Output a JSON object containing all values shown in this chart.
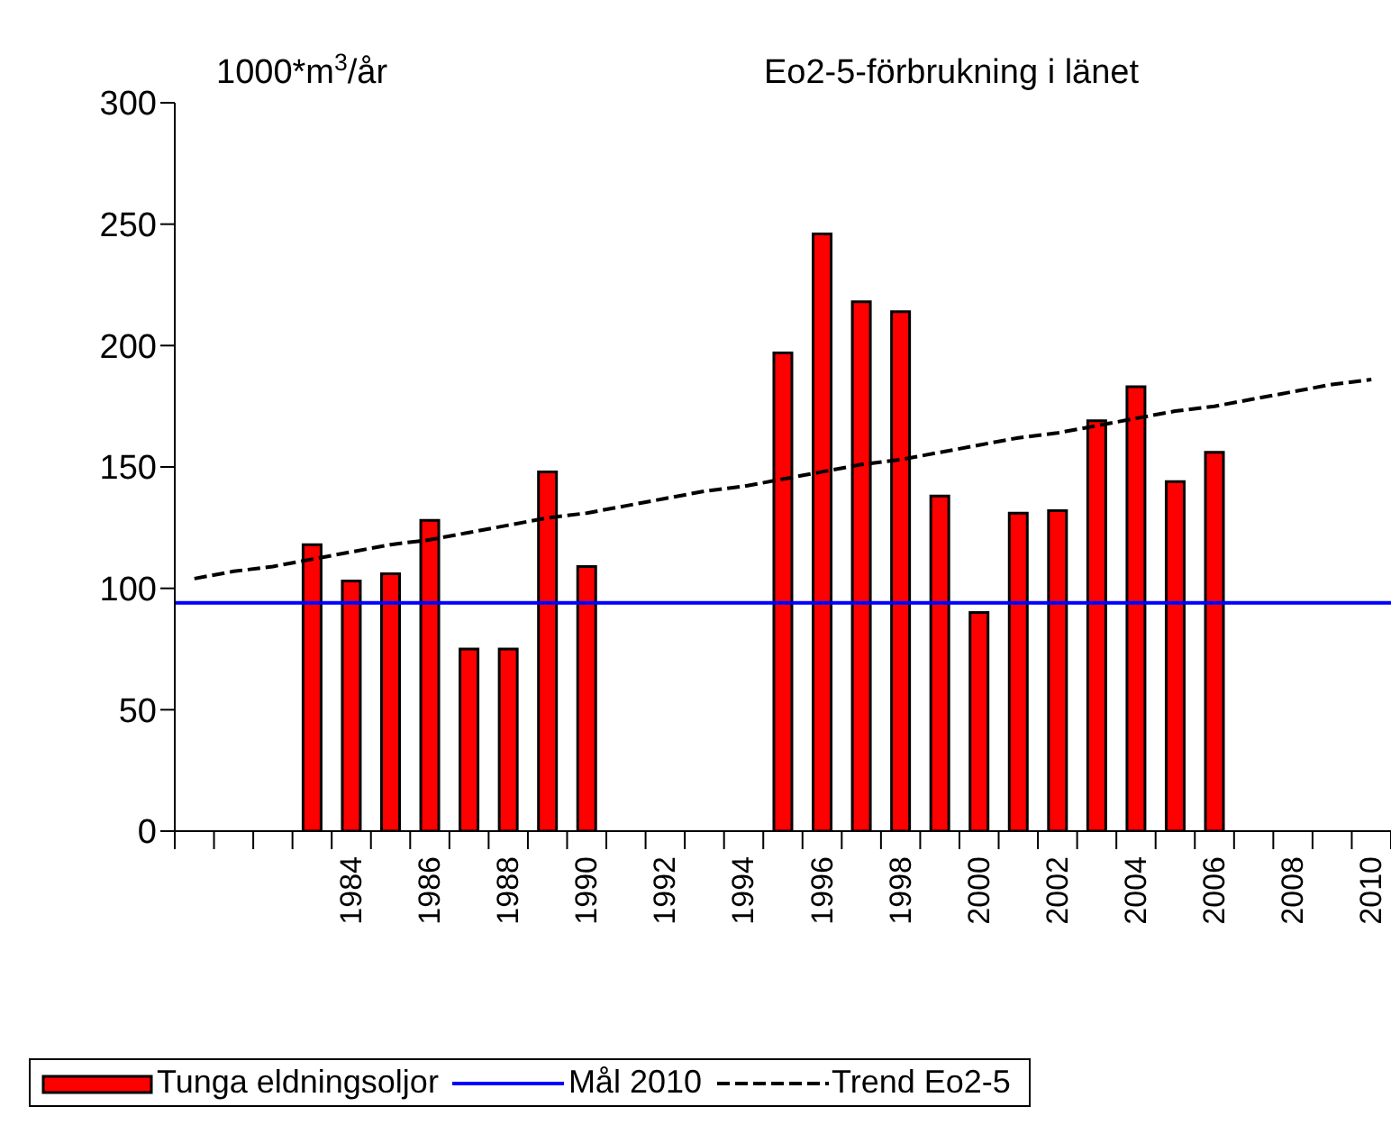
{
  "chart_data": {
    "type": "bar",
    "title": "Eo2-5-förbrukning i länet",
    "ylabel": "1000*m$^{3}$/år",
    "categories": [
      null,
      null,
      null,
      null,
      "1984",
      null,
      "1986",
      null,
      "1988",
      null,
      "1990",
      null,
      "1992",
      null,
      "1994",
      null,
      "1996",
      null,
      "1998",
      null,
      "2000",
      null,
      "2002",
      null,
      "2004",
      null,
      "2006",
      null,
      "2008",
      null,
      "2010"
    ],
    "series": [
      {
        "name": "Tunga eldningsoljor",
        "color": "#ff0000",
        "values": [
          null,
          null,
          null,
          118,
          103,
          106,
          128,
          75,
          75,
          148,
          109,
          null,
          null,
          null,
          null,
          197,
          246,
          218,
          214,
          138,
          90,
          131,
          132,
          169,
          183,
          144,
          156,
          null,
          null,
          null,
          null
        ]
      },
      {
        "name": "Trend Eo2-5",
        "type": "line",
        "color": "#000000",
        "line_style": "dashed",
        "values": [
          104,
          107,
          109,
          112,
          115,
          118,
          120,
          123,
          126,
          129,
          131,
          134,
          137,
          140,
          142,
          145,
          148,
          151,
          153,
          156,
          159,
          162,
          164,
          167,
          170,
          173,
          175,
          178,
          181,
          184,
          186
        ]
      }
    ],
    "ref_lines": [
      {
        "axis": "y",
        "value": 94,
        "label": "Mål 2010",
        "color": "#0000ff"
      }
    ],
    "ylim": [
      0,
      300
    ],
    "yticks": [
      0,
      50,
      100,
      150,
      200,
      250,
      300
    ],
    "grid": false,
    "legend": "bottom",
    "marker": "none"
  }
}
